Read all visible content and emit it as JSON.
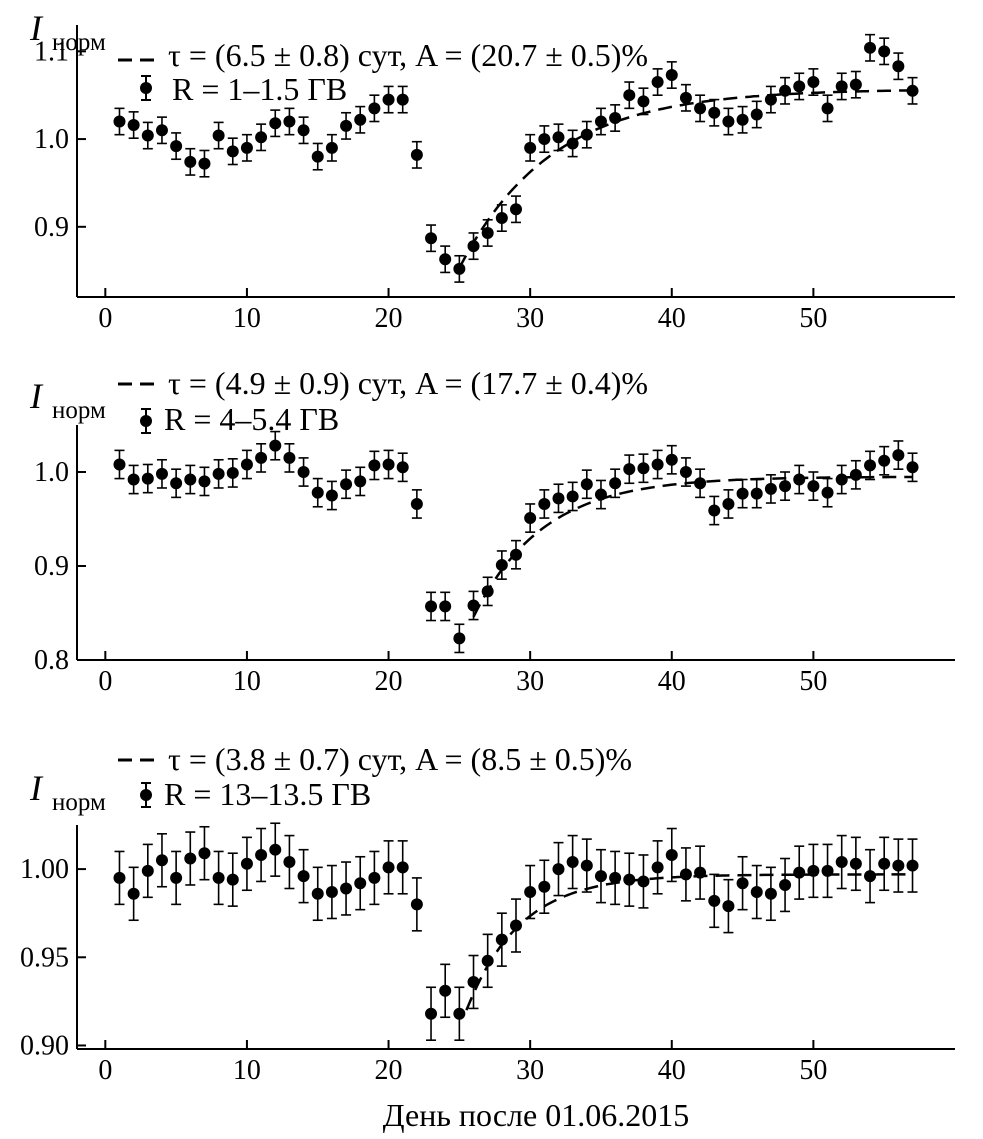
{
  "figure": {
    "xlabel": "День после 01.06.2015"
  },
  "chart_data": [
    {
      "type": "scatter",
      "panel": "top",
      "ylabel_main": "I",
      "ylabel_sub": "норм",
      "xlim": [
        -2,
        60
      ],
      "ylim": [
        0.82,
        1.13
      ],
      "xticks": [
        0,
        10,
        20,
        30,
        40,
        50
      ],
      "yticks": [
        0.9,
        1.0,
        1.1
      ],
      "ytick_labels": [
        "0.9",
        "1.0",
        "1.1"
      ],
      "grid": false,
      "legend_position": "top-left",
      "fit_label": "τ = (6.5 ± 0.8) сут, A = (20.7 ± 0.5)%",
      "series_label": "R = 1–1.5 ГВ",
      "err": 0.015,
      "x": [
        1,
        2,
        3,
        4,
        5,
        6,
        7,
        8,
        9,
        10,
        11,
        12,
        13,
        14,
        15,
        16,
        17,
        18,
        19,
        20,
        21,
        22,
        23,
        24,
        25,
        26,
        27,
        28,
        29,
        30,
        31,
        32,
        33,
        34,
        35,
        36,
        37,
        38,
        39,
        40,
        41,
        42,
        43,
        44,
        45,
        46,
        47,
        48,
        49,
        50,
        51,
        52,
        53,
        54,
        55,
        56,
        57
      ],
      "y": [
        1.02,
        1.016,
        1.004,
        1.01,
        0.992,
        0.974,
        0.972,
        1.004,
        0.986,
        0.99,
        1.002,
        1.018,
        1.02,
        1.01,
        0.98,
        0.99,
        1.015,
        1.022,
        1.035,
        1.045,
        1.045,
        0.982,
        0.887,
        0.863,
        0.852,
        0.878,
        0.893,
        0.91,
        0.92,
        0.99,
        1.0,
        1.002,
        0.995,
        1.005,
        1.02,
        1.024,
        1.05,
        1.043,
        1.065,
        1.073,
        1.047,
        1.035,
        1.03,
        1.02,
        1.022,
        1.028,
        1.045,
        1.055,
        1.06,
        1.065,
        1.035,
        1.06,
        1.062,
        1.104,
        1.1,
        1.083,
        1.055
      ],
      "fit": {
        "x0": 25,
        "y0": 0.853,
        "y_inf": 1.057,
        "tau": 6.5,
        "x_end": 57
      }
    },
    {
      "type": "scatter",
      "panel": "middle",
      "ylabel_main": "I",
      "ylabel_sub": "норм",
      "xlim": [
        -2,
        60
      ],
      "ylim": [
        0.8,
        1.05
      ],
      "xticks": [
        0,
        10,
        20,
        30,
        40,
        50
      ],
      "yticks": [
        0.8,
        0.9,
        1.0
      ],
      "ytick_labels": [
        "0.8",
        "0.9",
        "1.0"
      ],
      "grid": false,
      "legend_position": "top-left",
      "fit_label": "τ = (4.9 ± 0.9) сут, A = (17.7 ± 0.4)%",
      "series_label": "R = 4–5.4 ГВ",
      "err": 0.015,
      "x": [
        1,
        2,
        3,
        4,
        5,
        6,
        7,
        8,
        9,
        10,
        11,
        12,
        13,
        14,
        15,
        16,
        17,
        18,
        19,
        20,
        21,
        22,
        23,
        24,
        25,
        26,
        27,
        28,
        29,
        30,
        31,
        32,
        33,
        34,
        35,
        36,
        37,
        38,
        39,
        40,
        41,
        42,
        43,
        44,
        45,
        46,
        47,
        48,
        49,
        50,
        51,
        52,
        53,
        54,
        55,
        56,
        57
      ],
      "y": [
        1.008,
        0.992,
        0.993,
        0.998,
        0.988,
        0.992,
        0.99,
        0.998,
        0.999,
        1.008,
        1.015,
        1.028,
        1.015,
        1.0,
        0.978,
        0.975,
        0.987,
        0.99,
        1.007,
        1.008,
        1.005,
        0.966,
        0.857,
        0.857,
        0.823,
        0.858,
        0.873,
        0.901,
        0.912,
        0.951,
        0.966,
        0.972,
        0.974,
        0.987,
        0.976,
        0.988,
        1.003,
        1.004,
        1.008,
        1.013,
        1.0,
        0.988,
        0.959,
        0.966,
        0.977,
        0.977,
        0.982,
        0.985,
        0.992,
        0.985,
        0.978,
        0.992,
        0.997,
        1.007,
        1.012,
        1.018,
        1.005
      ],
      "fit": {
        "x0": 26,
        "y0": 0.846,
        "y_inf": 0.995,
        "tau": 4.9,
        "x_end": 57
      }
    },
    {
      "type": "scatter",
      "panel": "bottom",
      "ylabel_main": "I",
      "ylabel_sub": "норм",
      "xlim": [
        -2,
        60
      ],
      "ylim": [
        0.898,
        1.025
      ],
      "xticks": [
        0,
        10,
        20,
        30,
        40,
        50
      ],
      "yticks": [
        0.9,
        0.95,
        1.0
      ],
      "ytick_labels": [
        "0.90",
        "0.95",
        "1.00"
      ],
      "grid": false,
      "legend_position": "top-left",
      "fit_label": "τ = (3.8 ± 0.7) сут, A = (8.5 ± 0.5)%",
      "series_label": "R = 13–13.5 ГВ",
      "err": 0.015,
      "x": [
        1,
        2,
        3,
        4,
        5,
        6,
        7,
        8,
        9,
        10,
        11,
        12,
        13,
        14,
        15,
        16,
        17,
        18,
        19,
        20,
        21,
        22,
        23,
        24,
        25,
        26,
        27,
        28,
        29,
        30,
        31,
        32,
        33,
        34,
        35,
        36,
        37,
        38,
        39,
        40,
        41,
        42,
        43,
        44,
        45,
        46,
        47,
        48,
        49,
        50,
        51,
        52,
        53,
        54,
        55,
        56,
        57
      ],
      "y": [
        0.995,
        0.986,
        0.999,
        1.005,
        0.995,
        1.006,
        1.009,
        0.995,
        0.994,
        1.003,
        1.008,
        1.011,
        1.004,
        0.996,
        0.986,
        0.987,
        0.989,
        0.992,
        0.995,
        1.001,
        1.001,
        0.98,
        0.918,
        0.931,
        0.918,
        0.936,
        0.948,
        0.96,
        0.968,
        0.987,
        0.99,
        1.0,
        1.004,
        1.002,
        0.996,
        0.995,
        0.994,
        0.993,
        1.001,
        1.008,
        0.997,
        0.998,
        0.982,
        0.979,
        0.992,
        0.987,
        0.986,
        0.991,
        0.998,
        0.999,
        0.999,
        1.004,
        1.003,
        0.996,
        1.003,
        1.002,
        1.002
      ],
      "fit": {
        "x0": 25.5,
        "y0": 0.92,
        "y_inf": 0.997,
        "tau": 3.8,
        "x_end": 57
      }
    }
  ]
}
